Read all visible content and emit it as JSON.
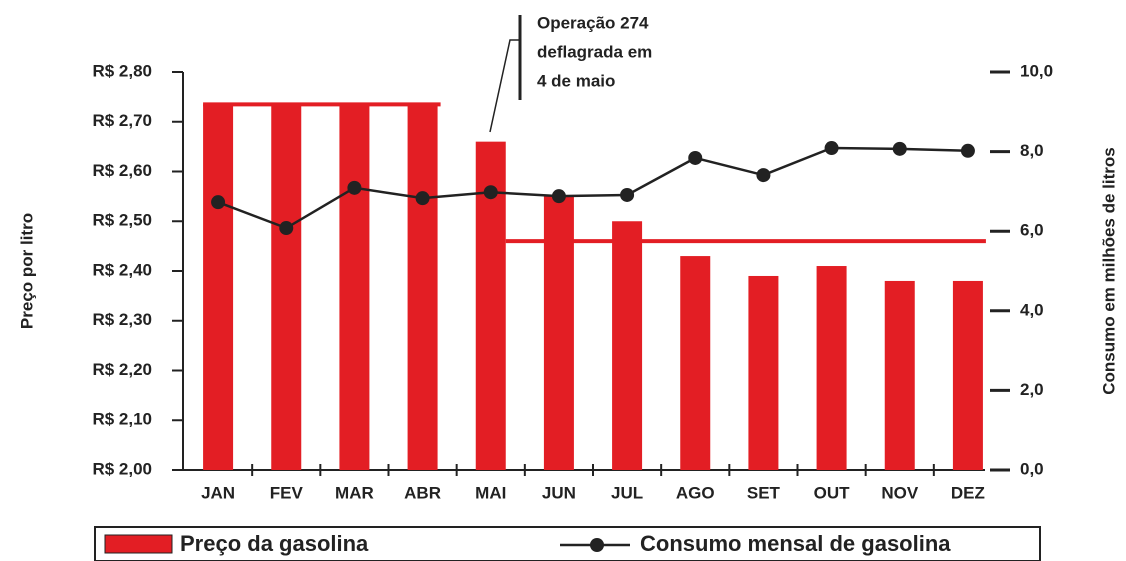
{
  "chart_data": {
    "type": "bar-line",
    "categories": [
      "JAN",
      "FEV",
      "MAR",
      "ABR",
      "MAI",
      "JUN",
      "JUL",
      "AGO",
      "SET",
      "OUT",
      "NOV",
      "DEZ"
    ],
    "series": [
      {
        "name": "Preço da gasolina",
        "color": "#e31e24",
        "type": "bar",
        "axis": "y",
        "values": [
          2.735,
          2.735,
          2.735,
          2.735,
          2.66,
          2.55,
          2.5,
          2.43,
          2.39,
          2.41,
          2.38,
          2.38
        ]
      },
      {
        "name": "Consumo mensal de gasolina",
        "color": "#222222",
        "type": "line",
        "axis": "y2",
        "values": [
          6.73,
          6.08,
          7.09,
          6.83,
          6.98,
          6.88,
          6.91,
          7.84,
          7.41,
          8.09,
          8.07,
          8.02
        ]
      }
    ],
    "reference_lines": [
      {
        "value": 2.735,
        "start": "JAN",
        "end": "ABR",
        "color": "#e31e24"
      },
      {
        "value": 2.46,
        "start": "MAI",
        "end": "DEZ",
        "color": "#e31e24"
      }
    ],
    "ylabel": "Preço por litro",
    "y2label": "Consumo em milhões de litros",
    "ylim": [
      2.0,
      2.8
    ],
    "yticks": [
      {
        "value": 2.0,
        "label": "R$ 2,00"
      },
      {
        "value": 2.1,
        "label": "R$ 2,10"
      },
      {
        "value": 2.2,
        "label": "R$ 2,20"
      },
      {
        "value": 2.3,
        "label": "R$ 2,30"
      },
      {
        "value": 2.4,
        "label": "R$ 2,40"
      },
      {
        "value": 2.5,
        "label": "R$ 2,50"
      },
      {
        "value": 2.6,
        "label": "R$ 2,60"
      },
      {
        "value": 2.7,
        "label": "R$ 2,70"
      },
      {
        "value": 2.8,
        "label": "R$ 2,80"
      }
    ],
    "y2lim": [
      0,
      10
    ],
    "y2ticks": [
      {
        "value": 0,
        "label": "0,0"
      },
      {
        "value": 2,
        "label": "2,0"
      },
      {
        "value": 4,
        "label": "4,0"
      },
      {
        "value": 6,
        "label": "6,0"
      },
      {
        "value": 8,
        "label": "8,0"
      },
      {
        "value": 10,
        "label": "10,0"
      }
    ],
    "annotation": {
      "lines": [
        "Operação 274",
        "deflagrada em",
        "4 de maio"
      ]
    },
    "legend": "bottom"
  }
}
